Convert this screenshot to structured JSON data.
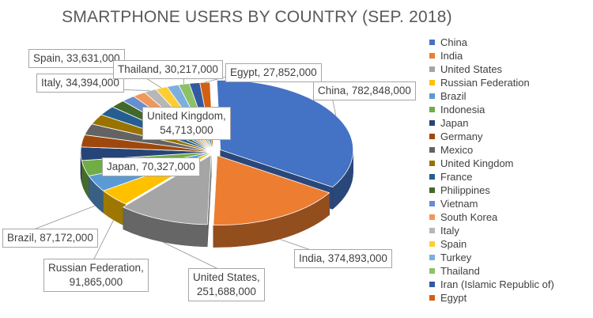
{
  "chart_data": {
    "type": "pie",
    "title": "SMARTPHONE USERS BY COUNTRY (SEP. 2018)",
    "legend_position": "right",
    "slices": [
      {
        "name": "China",
        "value": 782848000,
        "color": "#4472c4"
      },
      {
        "name": "India",
        "value": 374893000,
        "color": "#ed7d31"
      },
      {
        "name": "United States",
        "value": 251688000,
        "color": "#a5a5a5"
      },
      {
        "name": "Russian Federation",
        "value": 91865000,
        "color": "#ffc000"
      },
      {
        "name": "Brazil",
        "value": 87172000,
        "color": "#5b9bd5"
      },
      {
        "name": "Indonesia",
        "value": 83000000,
        "color": "#70ad47"
      },
      {
        "name": "Japan",
        "value": 70327000,
        "color": "#264478"
      },
      {
        "name": "Germany",
        "value": 64000000,
        "color": "#9e480e"
      },
      {
        "name": "Mexico",
        "value": 60000000,
        "color": "#636363"
      },
      {
        "name": "United Kingdom",
        "value": 54713000,
        "color": "#997300"
      },
      {
        "name": "France",
        "value": 51000000,
        "color": "#255e91"
      },
      {
        "name": "Philippines",
        "value": 42000000,
        "color": "#43682b"
      },
      {
        "name": "Vietnam",
        "value": 38000000,
        "color": "#698ed0"
      },
      {
        "name": "South Korea",
        "value": 36000000,
        "color": "#f1975a"
      },
      {
        "name": "Italy",
        "value": 34394000,
        "color": "#b7b7b7"
      },
      {
        "name": "Spain",
        "value": 33631000,
        "color": "#ffcd33"
      },
      {
        "name": "Turkey",
        "value": 33000000,
        "color": "#7cafdd"
      },
      {
        "name": "Thailand",
        "value": 30217000,
        "color": "#8cc168"
      },
      {
        "name": "Iran (Islamic Republic of)",
        "value": 29000000,
        "color": "#335aa1"
      },
      {
        "name": "Egypt",
        "value": 27852000,
        "color": "#d26012"
      }
    ],
    "data_labels": [
      {
        "slice": "China",
        "lines": [
          "China, 782,848,000"
        ]
      },
      {
        "slice": "India",
        "lines": [
          "India, 374,893,000"
        ]
      },
      {
        "slice": "United States",
        "lines": [
          "United States,",
          "251,688,000"
        ]
      },
      {
        "slice": "Russian Federation",
        "lines": [
          "Russian Federation,",
          "91,865,000"
        ]
      },
      {
        "slice": "Brazil",
        "lines": [
          "Brazil, 87,172,000"
        ]
      },
      {
        "slice": "Japan",
        "lines": [
          "Japan, 70,327,000"
        ]
      },
      {
        "slice": "United Kingdom",
        "lines": [
          "United Kingdom,",
          "54,713,000"
        ]
      },
      {
        "slice": "Italy",
        "lines": [
          "Italy, 34,394,000"
        ]
      },
      {
        "slice": "Spain",
        "lines": [
          "Spain, 33,631,000"
        ]
      },
      {
        "slice": "Thailand",
        "lines": [
          "Thailand, 30,217,000"
        ]
      },
      {
        "slice": "Egypt",
        "lines": [
          "Egypt, 27,852,000"
        ]
      }
    ]
  }
}
